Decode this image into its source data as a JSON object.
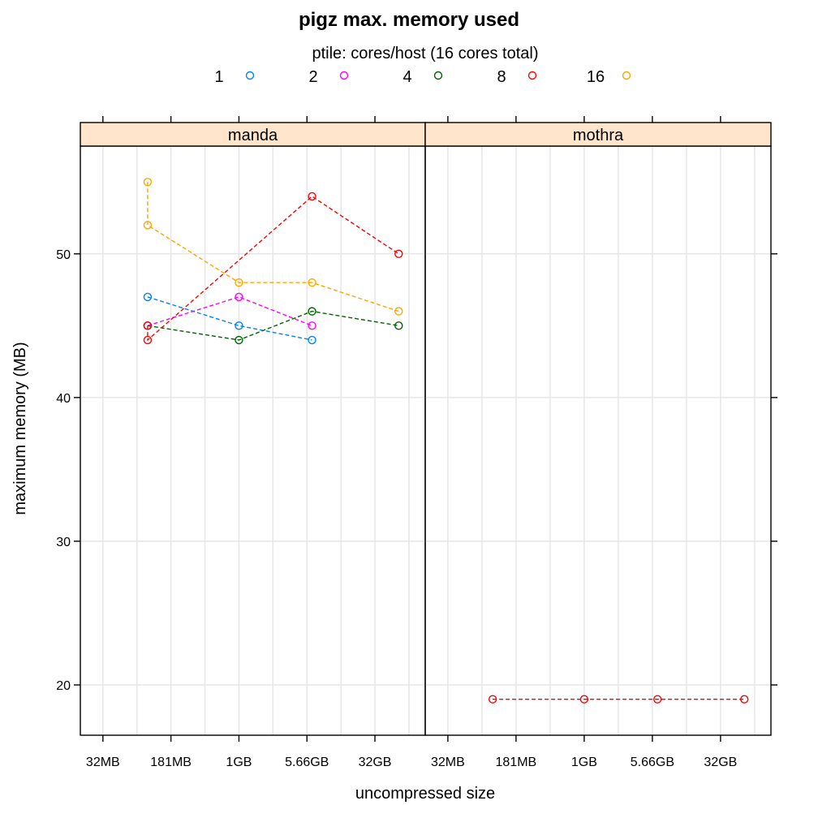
{
  "chart_data": {
    "type": "line",
    "title": "pigz max. memory used",
    "legend": {
      "title": "ptile: cores/host (16 cores total)",
      "placement": "top"
    },
    "xlabel": "uncompressed size",
    "ylabel": "maximum memory (MB)",
    "x_scale": "log2",
    "x_ticks": [
      {
        "label": "32MB",
        "value": 32
      },
      {
        "label": "181MB",
        "value": 181
      },
      {
        "label": "1GB",
        "value": 1024
      },
      {
        "label": "5.66GB",
        "value": 5793
      },
      {
        "label": "32GB",
        "value": 32768
      }
    ],
    "xlim_MB": [
      18,
      118000
    ],
    "y_ticks": [
      20,
      30,
      40,
      50
    ],
    "ylim": [
      16.5,
      57.5
    ],
    "grid": true,
    "panels": [
      {
        "name": "manda",
        "series": [
          {
            "name": "1",
            "color": "#0080ff",
            "points": [
              [
                100,
                47
              ],
              [
                1024,
                45
              ],
              [
                6600,
                44
              ]
            ]
          },
          {
            "name": "2",
            "color": "#ff00ff",
            "points": [
              [
                100,
                45
              ],
              [
                1024,
                47
              ],
              [
                6600,
                45
              ]
            ]
          },
          {
            "name": "4",
            "color": "#006400",
            "points": [
              [
                100,
                45
              ],
              [
                1024,
                44
              ],
              [
                6600,
                46
              ],
              [
                60000,
                45
              ]
            ]
          },
          {
            "name": "8",
            "color": "#ff0000",
            "points": [
              [
                100,
                45
              ],
              [
                100,
                44
              ],
              [
                6600,
                54
              ],
              [
                60000,
                50
              ]
            ]
          },
          {
            "name": "16",
            "color": "#ffa500",
            "points": [
              [
                100,
                55
              ],
              [
                100,
                52
              ],
              [
                1024,
                48
              ],
              [
                6600,
                48
              ],
              [
                60000,
                46
              ]
            ]
          }
        ]
      },
      {
        "name": "mothra",
        "series": [
          {
            "name": "8",
            "color": "#ff0000",
            "points": [
              [
                100,
                19
              ],
              [
                1024,
                19
              ],
              [
                6600,
                19
              ],
              [
                60000,
                19
              ]
            ]
          }
        ]
      }
    ]
  }
}
